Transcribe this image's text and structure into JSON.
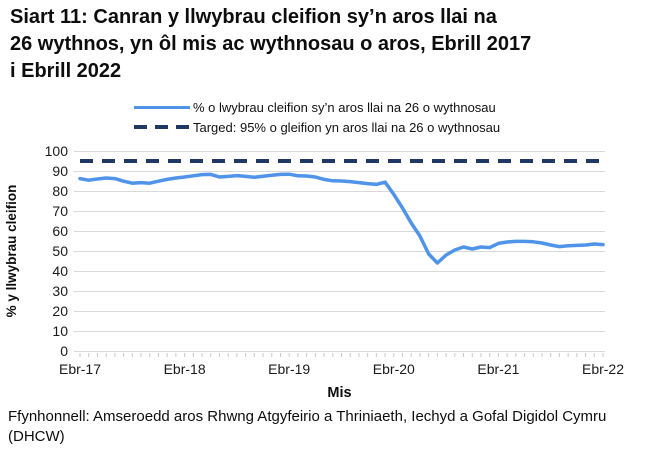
{
  "title": {
    "full": "Siart 11: Canran y llwybrau cleifion sy’n aros llai na 26 wythnos, yn ôl mis ac wythnosau o aros, Ebrill 2017 i Ebrill 2022",
    "lines": [
      "Siart 11: Canran y llwybrau cleifion sy’n aros llai na",
      "26 wythnos, yn ôl mis ac wythnosau o aros, Ebrill 2017",
      "i Ebrill 2022"
    ]
  },
  "legend": [
    {
      "label": "% o lwybrau cleifion sy’n aros llai na 26 o wythnosau",
      "color": "#4f94e8",
      "style": "solid"
    },
    {
      "label": "Targed: 95% o gleifion yn aros llai na 26 o wythnosau",
      "color": "#1f3864",
      "style": "dashed"
    }
  ],
  "colors": {
    "series_blue": "#4f94e8",
    "target_navy": "#1f3864",
    "grid": "#d9d9d9",
    "tick": "#c9c9c9",
    "axis_text": "#1a1a1a"
  },
  "chart_data": {
    "type": "line",
    "title": "Siart 11: Canran y llwybrau cleifion sy’n aros llai na 26 wythnos, yn ôl mis ac wythnosau o aros, Ebrill 2017 i Ebrill 2022",
    "xlabel": "Mis",
    "ylabel": "% y llwybrau cleifion",
    "ylim": [
      0,
      100
    ],
    "y_tick_step": 10,
    "grid": "horizontal-only",
    "legend_position": "top",
    "x_unit": "month",
    "x_start": "Ebrill 2017",
    "x_end": "Ebrill 2022",
    "x_tick_labels": [
      "Ebr-17",
      "Ebr-18",
      "Ebr-19",
      "Ebr-20",
      "Ebr-21",
      "Ebr-22"
    ],
    "x_tick_indices": [
      0,
      12,
      24,
      36,
      48,
      60
    ],
    "series": [
      {
        "name": "% o lwybrau cleifion sy’n aros llai na 26 o wythnosau",
        "color": "#4f94e8",
        "dash": "solid",
        "values": [
          86.2,
          85.4,
          86.0,
          86.5,
          86.2,
          84.9,
          83.9,
          84.2,
          83.9,
          84.9,
          85.8,
          86.5,
          87.0,
          87.6,
          88.2,
          88.3,
          87.0,
          87.3,
          87.7,
          87.3,
          86.9,
          87.4,
          87.9,
          88.3,
          88.4,
          87.6,
          87.5,
          87.0,
          85.8,
          85.1,
          85.0,
          84.7,
          84.2,
          83.7,
          83.3,
          84.4,
          78.3,
          71.5,
          64.0,
          57.5,
          48.5,
          44.0,
          48.0,
          50.5,
          52.0,
          51.0,
          52.0,
          51.7,
          53.8,
          54.5,
          54.8,
          54.8,
          54.6,
          54.0,
          53.0,
          52.2,
          52.6,
          52.8,
          53.0,
          53.5,
          53.2
        ]
      },
      {
        "name": "Targed: 95% o gleifion yn aros llai na 26 o wythnosau",
        "color": "#1f3864",
        "dash": "dashed",
        "constant": 95
      }
    ]
  },
  "footer": {
    "full": "Ffynhonnell: Amseroedd aros Rhwng Atgyfeirio a Thriniaeth, Iechyd a Gofal Digidol Cymru (DHCW)",
    "lines": [
      "Ffynhonnell: Amseroedd aros Rhwng Atgyfeirio a Thriniaeth, Iechyd a Gofal Digidol Cymru",
      "(DHCW)"
    ]
  }
}
